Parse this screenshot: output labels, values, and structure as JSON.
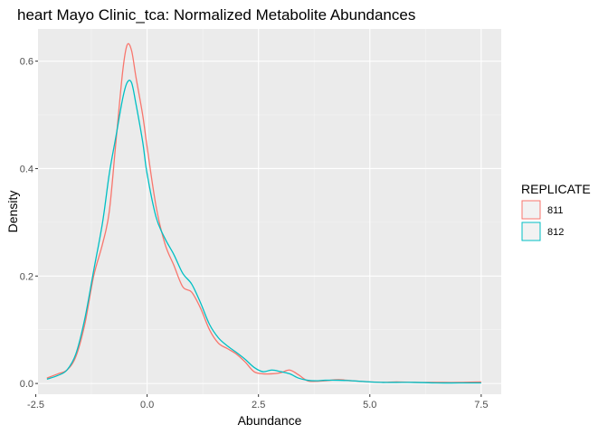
{
  "chart_data": {
    "type": "line",
    "title": "heart Mayo Clinic_tca: Normalized Metabolite Abundances",
    "xlabel": "Abundance",
    "ylabel": "Density",
    "xlim": [
      -2.45,
      7.95
    ],
    "ylim": [
      -0.02,
      0.66
    ],
    "x_ticks": [
      -2.5,
      0.0,
      2.5,
      5.0,
      7.5
    ],
    "x_tick_labels": [
      "-2.5",
      "0.0",
      "2.5",
      "5.0",
      "7.5"
    ],
    "y_ticks": [
      0.0,
      0.2,
      0.4,
      0.6
    ],
    "y_tick_labels": [
      "0.0",
      "0.2",
      "0.4",
      "0.6"
    ],
    "grid": true,
    "legend": {
      "title": "REPLICATE",
      "position": "right"
    },
    "series": [
      {
        "name": "811",
        "color": "#F8766D",
        "x": [
          -2.25,
          -2.0,
          -1.8,
          -1.6,
          -1.4,
          -1.2,
          -1.0,
          -0.85,
          -0.7,
          -0.55,
          -0.45,
          -0.35,
          -0.25,
          -0.1,
          0.0,
          0.2,
          0.4,
          0.6,
          0.8,
          1.0,
          1.2,
          1.4,
          1.6,
          1.8,
          2.0,
          2.2,
          2.4,
          2.6,
          2.8,
          3.0,
          3.2,
          3.4,
          3.6,
          3.8,
          4.0,
          4.3,
          4.6,
          5.0,
          5.3,
          5.6,
          6.0,
          6.5,
          7.0,
          7.5
        ],
        "y": [
          0.01,
          0.018,
          0.025,
          0.05,
          0.11,
          0.2,
          0.26,
          0.32,
          0.45,
          0.58,
          0.63,
          0.62,
          0.57,
          0.5,
          0.44,
          0.33,
          0.26,
          0.22,
          0.18,
          0.17,
          0.14,
          0.1,
          0.075,
          0.065,
          0.055,
          0.04,
          0.022,
          0.018,
          0.018,
          0.02,
          0.025,
          0.016,
          0.005,
          0.004,
          0.005,
          0.007,
          0.005,
          0.003,
          0.002,
          0.003,
          0.002,
          0.002,
          0.002,
          0.003
        ]
      },
      {
        "name": "812",
        "color": "#00BFC4",
        "x": [
          -2.25,
          -2.0,
          -1.8,
          -1.6,
          -1.4,
          -1.2,
          -1.0,
          -0.85,
          -0.7,
          -0.55,
          -0.45,
          -0.35,
          -0.25,
          -0.1,
          0.0,
          0.2,
          0.4,
          0.6,
          0.8,
          1.0,
          1.2,
          1.4,
          1.6,
          1.8,
          2.0,
          2.2,
          2.4,
          2.6,
          2.8,
          3.0,
          3.2,
          3.4,
          3.6,
          3.8,
          4.0,
          4.3,
          4.6,
          5.0,
          5.3,
          5.6,
          6.0,
          6.5,
          7.0,
          7.5
        ],
        "y": [
          0.008,
          0.015,
          0.025,
          0.055,
          0.12,
          0.21,
          0.3,
          0.39,
          0.46,
          0.53,
          0.56,
          0.56,
          0.52,
          0.45,
          0.39,
          0.31,
          0.27,
          0.24,
          0.205,
          0.185,
          0.15,
          0.11,
          0.085,
          0.07,
          0.058,
          0.045,
          0.03,
          0.022,
          0.025,
          0.022,
          0.018,
          0.01,
          0.006,
          0.005,
          0.006,
          0.006,
          0.005,
          0.003,
          0.002,
          0.002,
          0.002,
          0.001,
          0.001,
          0.001
        ]
      }
    ]
  }
}
